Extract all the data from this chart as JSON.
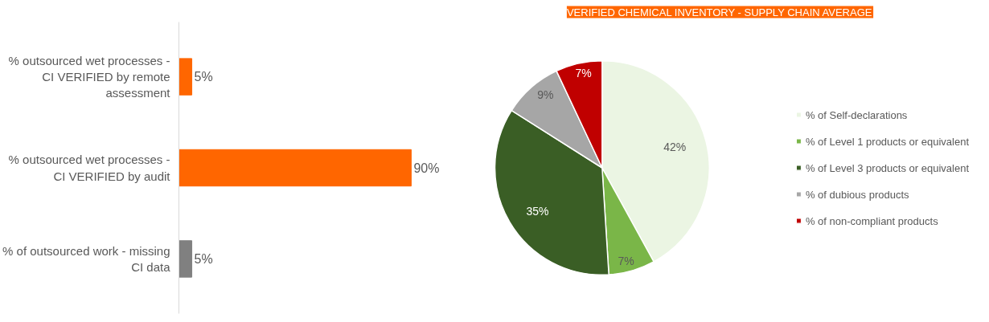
{
  "chart_data": [
    {
      "type": "bar",
      "orientation": "horizontal",
      "categories": [
        "% outsourced wet processes - CI VERIFIED by remote assessment",
        "% outsourced wet processes - CI VERIFIED by audit",
        "% of outsourced work - missing CI data"
      ],
      "values": [
        5,
        90,
        5
      ],
      "colors": [
        "#ff6600",
        "#ff6600",
        "#808080"
      ],
      "value_labels": [
        "5%",
        "90%",
        "5%"
      ],
      "tick_labels": "y",
      "grid": false
    },
    {
      "type": "pie",
      "title": "VERIFIED CHEMICAL INVENTORY - SUPPLY CHAIN AVERAGE",
      "categories": [
        "% of Self-declarations",
        "% of Level 1 products or equivalent",
        "% of Level 3 products or equivalent",
        "% of dubious products",
        "% of non-compliant products"
      ],
      "values": [
        42,
        7,
        35,
        9,
        7
      ],
      "colors": [
        "#ebf5e3",
        "#7ab648",
        "#3a5e25",
        "#a6a6a6",
        "#c00000"
      ],
      "value_labels": [
        "42%",
        "7%",
        "35%",
        "9%",
        "7%"
      ],
      "legend": "right"
    }
  ]
}
